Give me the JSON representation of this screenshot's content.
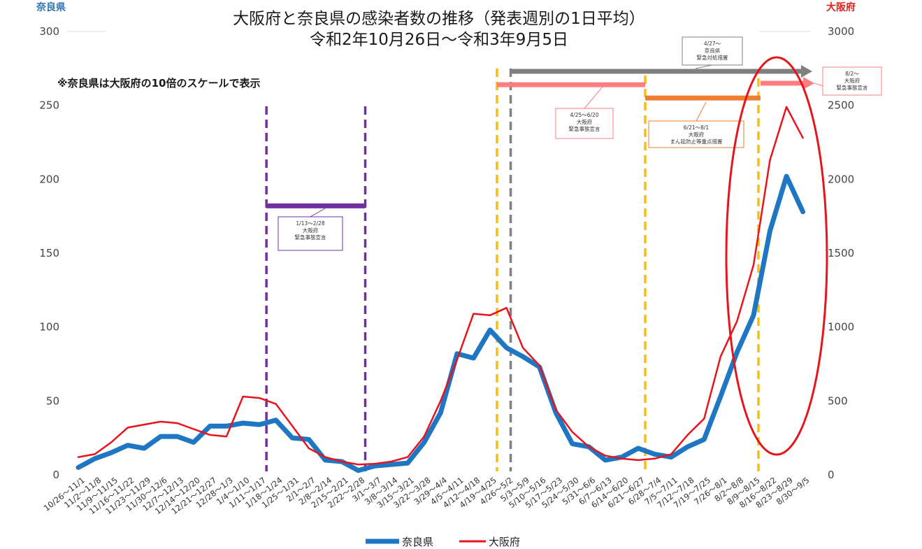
{
  "chart_data": {
    "type": "line",
    "title": [
      "大阪府と奈良県の感染者数の推移（発表週別の1日平均）",
      "令和2年10月26日～令和3年9月5日"
    ],
    "note": "※奈良県は大阪府の10倍のスケールで表示",
    "ylabel_left": "奈良県",
    "ylabel_right": "大阪府",
    "ylim_left": [
      0,
      300
    ],
    "ylim_right": [
      0,
      3000
    ],
    "yticks_left": [
      "0",
      "50",
      "100",
      "150",
      "200",
      "250",
      "300"
    ],
    "yticks_right": [
      "0",
      "500",
      "1000",
      "1500",
      "2000",
      "2500",
      "3000"
    ],
    "legend_position": "bottom",
    "grid": false,
    "categories": [
      "10/26～11/1",
      "11/2～11/8",
      "11/9～11/15",
      "11/16～11/22",
      "11/23～11/29",
      "11/30～12/6",
      "12/7～12/13",
      "12/14～12/20",
      "12/21～12/27",
      "12/28～1/3",
      "1/4～1/10",
      "1/11～1/17",
      "1/18～1/24",
      "1/25～1/31",
      "2/1～2/7",
      "2/8～2/14",
      "2/15～2/21",
      "2/22～2/28",
      "3/1～3/7",
      "3/8～3/14",
      "3/15～3/21",
      "3/22～3/28",
      "3/29～4/4",
      "4/5～4/11",
      "4/12～4/18",
      "4/19～4/25",
      "4/26～5/2",
      "5/3～5/9",
      "5/10～5/16",
      "5/17～5/23",
      "5/24～5/30",
      "5/31～6/6",
      "6/7～6/13",
      "6/14～6/20",
      "6/21～6/27",
      "6/28～7/4",
      "7/5～7/11",
      "7/12～7/18",
      "7/19～7/25",
      "7/26～8/1",
      "8/2～8/8",
      "8/9～8/15",
      "8/16～8/22",
      "8/23～8/29",
      "8/30～9/5"
    ],
    "series": [
      {
        "name": "奈良県",
        "axis": "left",
        "color": "#1f77c4",
        "values": [
          5,
          11,
          15,
          20,
          18,
          26,
          26,
          22,
          33,
          33,
          35,
          34,
          37,
          25,
          24,
          10,
          9,
          3,
          6,
          7,
          8,
          22,
          42,
          82,
          79,
          98,
          86,
          80,
          73,
          42,
          21,
          19,
          10,
          12,
          18,
          14,
          12,
          19,
          24,
          53,
          83,
          108,
          165,
          202,
          178
        ]
      },
      {
        "name": "大阪府",
        "axis": "right",
        "color": "#e8141b",
        "values": [
          120,
          140,
          220,
          320,
          340,
          360,
          350,
          310,
          270,
          260,
          530,
          520,
          480,
          330,
          180,
          120,
          90,
          70,
          75,
          90,
          120,
          260,
          500,
          780,
          1090,
          1080,
          1130,
          860,
          740,
          440,
          290,
          190,
          130,
          110,
          100,
          110,
          140,
          270,
          380,
          800,
          1040,
          1420,
          2130,
          2490,
          2280
        ]
      }
    ],
    "annotations": [
      {
        "text": [
          "1/13～2/28",
          "大阪府",
          "緊急事態宣言"
        ],
        "color": "#7030a0",
        "from_index": 11,
        "to_index": 17,
        "level_left": 182
      },
      {
        "text": [
          "4/25～6/20",
          "大阪府",
          "緊急事態宣言"
        ],
        "color": "#ff7c80",
        "from_index": 25,
        "to_index": 34,
        "level_left": 264
      },
      {
        "text": [
          "4/27～",
          "奈良県",
          "緊急対処措置"
        ],
        "color": "#808080",
        "from_index": 26,
        "to_index": 44,
        "level_left": 273
      },
      {
        "text": [
          "6/21～8/1",
          "大阪府",
          "まん延防止等重点措置"
        ],
        "color": "#ed7d31",
        "from_index": 34,
        "to_index": 41,
        "level_left": 255
      },
      {
        "text": [
          "8/2～",
          "大阪府",
          "緊急事態宣言"
        ],
        "color": "#ff7c80",
        "from_index": 41,
        "to_index": 44,
        "level_left": 265
      }
    ]
  }
}
